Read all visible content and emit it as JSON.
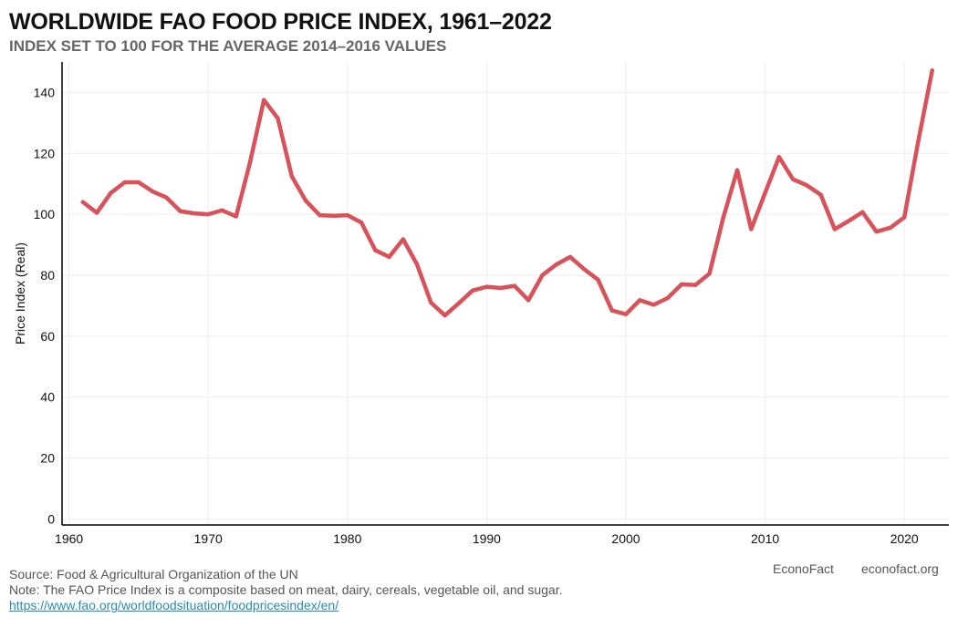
{
  "title": "WORLDWIDE FAO FOOD PRICE INDEX, 1961–2022",
  "subtitle": "INDEX SET TO 100 FOR THE AVERAGE 2014–2016 VALUES",
  "footer": {
    "source": "Source: Food & Agricultural Organization of the UN",
    "note": "Note: The FAO Price Index is a composite based on meat, dairy, cereals, vegetable oil, and sugar.",
    "link": "https://www.fao.org/worldfoodsituation/foodpricesindex/en/",
    "brand_name": "EconoFact",
    "brand_url": "econofact.org"
  },
  "colors": {
    "line": "#d9525a",
    "grid": "#eeeeee",
    "axis": "#000000"
  },
  "chart_data": {
    "type": "line",
    "title": "WORLDWIDE FAO FOOD PRICE INDEX, 1961–2022",
    "subtitle": "INDEX SET TO 100 FOR THE AVERAGE 2014–2016 VALUES",
    "xlabel": "",
    "ylabel": "Price Index (Real)",
    "xlim": [
      1959.5,
      2023.2
    ],
    "ylim": [
      -2,
      150
    ],
    "xticks": [
      1960,
      1970,
      1980,
      1990,
      2000,
      2010,
      2020
    ],
    "yticks": [
      0,
      20,
      40,
      60,
      80,
      100,
      120,
      140
    ],
    "grid": true,
    "legend": "none",
    "series": [
      {
        "x": [
          1961,
          1962,
          1963,
          1964,
          1965,
          1966,
          1967,
          1968,
          1969,
          1970,
          1971,
          1972,
          1973,
          1974,
          1975,
          1976,
          1977,
          1978,
          1979,
          1980,
          1981,
          1982,
          1983,
          1984,
          1985,
          1986,
          1987,
          1988,
          1989,
          1990,
          1991,
          1992,
          1993,
          1994,
          1995,
          1996,
          1997,
          1998,
          1999,
          2000,
          2001,
          2002,
          2003,
          2004,
          2005,
          2006,
          2007,
          2008,
          2009,
          2010,
          2011,
          2012,
          2013,
          2014,
          2015,
          2016,
          2017,
          2018,
          2019,
          2020,
          2021,
          2022
        ],
        "y": [
          104,
          100.5,
          107,
          110.5,
          110.5,
          107.5,
          105.5,
          101,
          100.3,
          100,
          101.3,
          99.3,
          117,
          137.5,
          131.5,
          112.5,
          104.5,
          99.7,
          99.5,
          99.7,
          97.3,
          88.2,
          86,
          91.8,
          83.5,
          71,
          66.8,
          70.8,
          75,
          76.2,
          75.8,
          76.5,
          71.8,
          80,
          83.5,
          86,
          82,
          78.5,
          68.4,
          67.2,
          71.8,
          70.3,
          72.5,
          77,
          76.8,
          80.5,
          99,
          114.5,
          95.1,
          107,
          118.8,
          111.5,
          109.5,
          106.4,
          95.1,
          97.8,
          100.7,
          94.3,
          95.6,
          99,
          124,
          147.2
        ]
      }
    ]
  }
}
